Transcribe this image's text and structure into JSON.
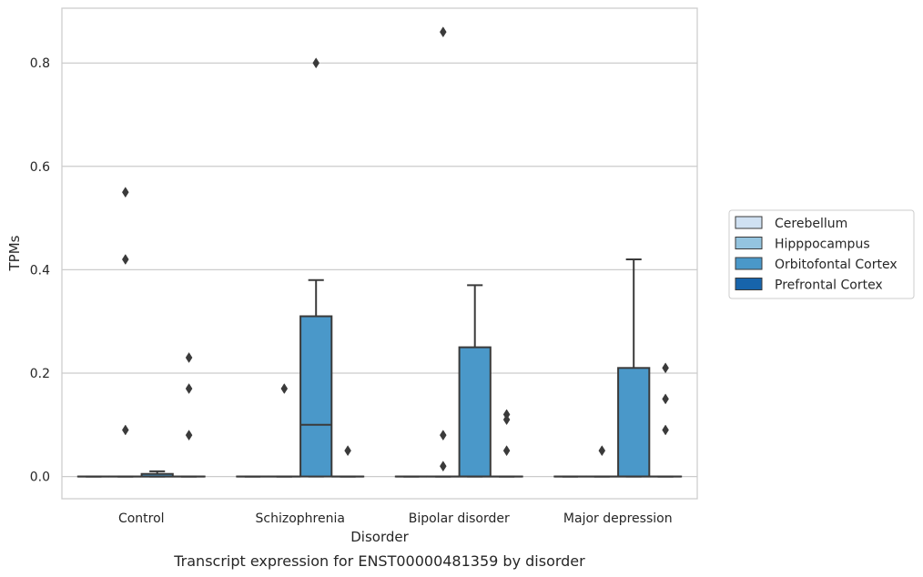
{
  "chart_data": {
    "type": "box",
    "caption": "Transcript expression for ENST00000481359 by disorder",
    "xlabel": "Disorder",
    "ylabel": "TPMs",
    "ylim": [
      -0.043,
      0.906
    ],
    "yticks": [
      0.0,
      0.2,
      0.4,
      0.6,
      0.8
    ],
    "ytick_labels": [
      "0.0",
      "0.2",
      "0.4",
      "0.6",
      "0.8"
    ],
    "grid": true,
    "legend_position": "right",
    "categories": [
      "Control",
      "Schizophrenia",
      "Bipolar disorder",
      "Major depression"
    ],
    "series": [
      {
        "name": "Cerebellum",
        "color": "#d0e1f2",
        "boxes": [
          {
            "q1": 0,
            "median": 0,
            "q3": 0,
            "whisker_low": 0,
            "whisker_high": 0,
            "outliers": []
          },
          {
            "q1": 0,
            "median": 0,
            "q3": 0,
            "whisker_low": 0,
            "whisker_high": 0,
            "outliers": []
          },
          {
            "q1": 0,
            "median": 0,
            "q3": 0,
            "whisker_low": 0,
            "whisker_high": 0,
            "outliers": []
          },
          {
            "q1": 0,
            "median": 0,
            "q3": 0,
            "whisker_low": 0,
            "whisker_high": 0,
            "outliers": []
          }
        ]
      },
      {
        "name": "Hipppocampus",
        "color": "#94c4df",
        "boxes": [
          {
            "q1": 0,
            "median": 0,
            "q3": 0,
            "whisker_low": 0,
            "whisker_high": 0,
            "outliers": [
              0.55,
              0.42,
              0.09
            ]
          },
          {
            "q1": 0,
            "median": 0,
            "q3": 0,
            "whisker_low": 0,
            "whisker_high": 0,
            "outliers": [
              0.17
            ]
          },
          {
            "q1": 0,
            "median": 0,
            "q3": 0,
            "whisker_low": 0,
            "whisker_high": 0,
            "outliers": [
              0.86,
              0.08,
              0.02
            ]
          },
          {
            "q1": 0,
            "median": 0,
            "q3": 0,
            "whisker_low": 0,
            "whisker_high": 0,
            "outliers": [
              0.05
            ]
          }
        ]
      },
      {
        "name": "Orbitofontal Cortex",
        "color": "#4a98c9",
        "boxes": [
          {
            "q1": 0,
            "median": 0,
            "q3": 0.005,
            "whisker_low": 0,
            "whisker_high": 0.01,
            "outliers": []
          },
          {
            "q1": 0,
            "median": 0.1,
            "q3": 0.31,
            "whisker_low": 0,
            "whisker_high": 0.38,
            "outliers": [
              0.8
            ]
          },
          {
            "q1": 0,
            "median": 0,
            "q3": 0.25,
            "whisker_low": 0,
            "whisker_high": 0.37,
            "outliers": []
          },
          {
            "q1": 0,
            "median": 0,
            "q3": 0.21,
            "whisker_low": 0,
            "whisker_high": 0.42,
            "outliers": []
          }
        ]
      },
      {
        "name": "Prefrontal Cortex",
        "color": "#1764ab",
        "boxes": [
          {
            "q1": 0,
            "median": 0,
            "q3": 0,
            "whisker_low": 0,
            "whisker_high": 0,
            "outliers": [
              0.23,
              0.17,
              0.08
            ]
          },
          {
            "q1": 0,
            "median": 0,
            "q3": 0,
            "whisker_low": 0,
            "whisker_high": 0,
            "outliers": [
              0.05
            ]
          },
          {
            "q1": 0,
            "median": 0,
            "q3": 0,
            "whisker_low": 0,
            "whisker_high": 0,
            "outliers": [
              0.12,
              0.11,
              0.05
            ]
          },
          {
            "q1": 0,
            "median": 0,
            "q3": 0,
            "whisker_low": 0,
            "whisker_high": 0,
            "outliers": [
              0.21,
              0.15,
              0.09
            ]
          }
        ]
      }
    ]
  }
}
